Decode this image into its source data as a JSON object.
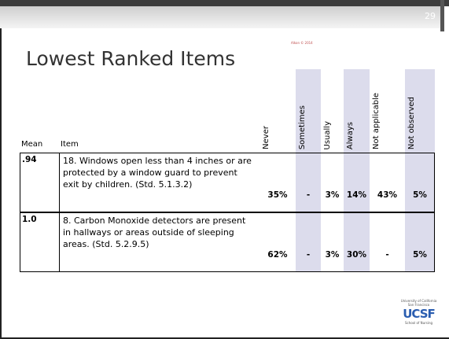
{
  "header": {
    "page_number": "29",
    "copyright": "Alkon © 2014"
  },
  "title": "Lowest Ranked Items",
  "table": {
    "columns": [
      "Mean",
      "Item",
      "Never",
      "Sometimes",
      "Usually",
      "Always",
      "Not applicable",
      "Not observed"
    ],
    "rows": [
      [
        ".94",
        "18. Windows open less than 4 inches or are protected by a window guard to prevent exit by children. (Std. 5.1.3.2)",
        "35%",
        "-",
        "3%",
        "14%",
        "43%",
        "5%"
      ],
      [
        "1.0",
        "8. Carbon Monoxide detectors are present in hallways or areas outside of sleeping areas. (Std. 5.2.9.5)",
        "62%",
        "-",
        "3%",
        "30%",
        "-",
        "5%"
      ]
    ]
  },
  "logo": {
    "mark": "UCSF",
    "line1": "University of California",
    "line2": "San Francisco",
    "line3": "School of Nursing"
  }
}
